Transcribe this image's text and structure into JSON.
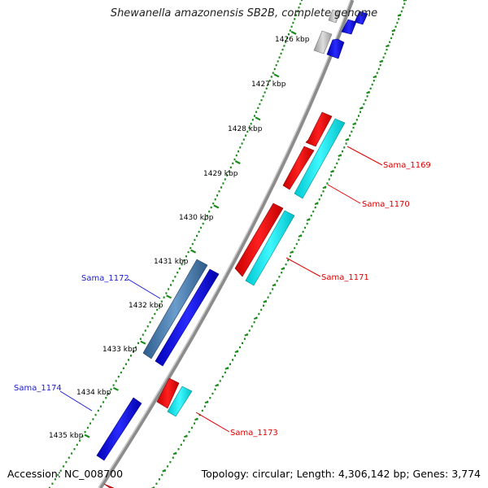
{
  "title": "Shewanella amazonensis SB2B, complete genome",
  "footer": {
    "accession": "Accession: NC_008700",
    "topology": "Topology: circular; Length: 4,306,142 bp; Genes: 3,774"
  },
  "kbp_labels": [
    "1426 kbp",
    "1427 kbp",
    "1428 kbp",
    "1429 kbp",
    "1430 kbp",
    "1431 kbp",
    "1432 kbp",
    "1433 kbp",
    "1434 kbp",
    "1435 kbp"
  ],
  "gene_labels": [
    {
      "id": "sama_1169",
      "text": "Sama_1169",
      "color": "#dd0000"
    },
    {
      "id": "sama_1170",
      "text": "Sama_1170",
      "color": "#dd0000"
    },
    {
      "id": "sama_1171",
      "text": "Sama_1171",
      "color": "#dd0000"
    },
    {
      "id": "sama_1172",
      "text": "Sama_1172",
      "color": "#1a1acc"
    },
    {
      "id": "sama_1173",
      "text": "Sama_1173",
      "color": "#dd0000"
    },
    {
      "id": "sama_1174",
      "text": "Sama_1174",
      "color": "#1a1acc"
    }
  ],
  "colors": {
    "backbone": "#888888",
    "ruler_dots": "#1a8a1a",
    "gene_red": "#ee0000",
    "gene_cyan": "#00e6ee",
    "gene_blue": "#0000dd",
    "gene_steel": "#4a7fb0",
    "gene_gray": "#bbbbbb"
  }
}
